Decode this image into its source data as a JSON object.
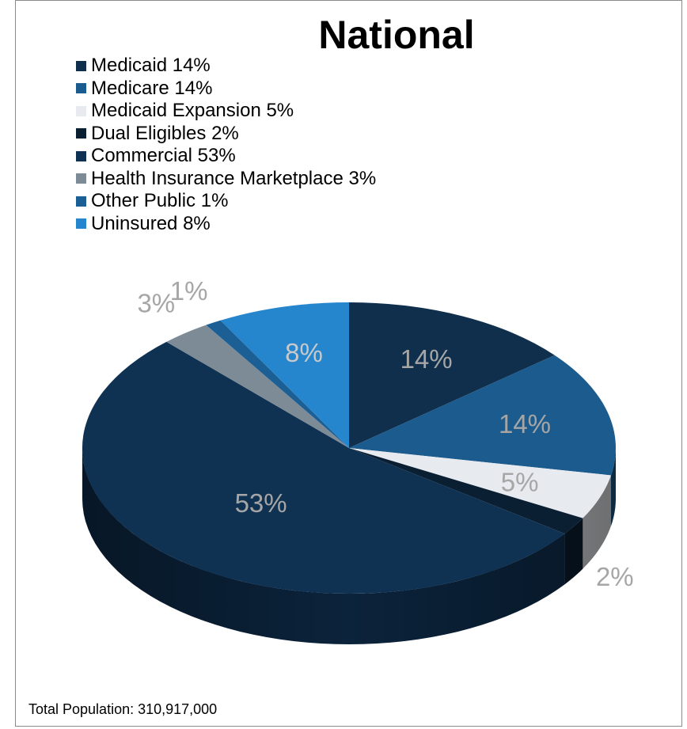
{
  "chart_data": {
    "type": "pie",
    "title": "National",
    "style": "3d",
    "legend_position": "top",
    "categories": [
      "Medicaid",
      "Medicare",
      "Medicaid Expansion",
      "Dual Eligibles",
      "Commercial",
      "Health Insurance Marketplace",
      "Other Public",
      "Uninsured"
    ],
    "values": [
      14,
      14,
      5,
      2,
      53,
      3,
      1,
      8
    ],
    "legend_labels": [
      "Medicaid 14%",
      "Medicare 14%",
      "Medicaid Expansion 5%",
      "Dual Eligibles 2%",
      "Commercial 53%",
      "Health Insurance Marketplace 3%",
      "Other Public 1%",
      "Uninsured 8%"
    ],
    "data_labels": [
      "14%",
      "14%",
      "5%",
      "2%",
      "53%",
      "3%",
      "1%",
      "8%"
    ],
    "colors": [
      "#0f2f4d",
      "#1b5b8d",
      "#e7ebef",
      "#0b1f33",
      "#0f3152",
      "#7d8b97",
      "#1b5f95",
      "#2586ce"
    ],
    "data_label_colors": [
      "#a6a6a6",
      "#a6a6a6",
      "#a6a6a6",
      "#a6a6a6",
      "#a6a6a6",
      "#a6a6a6",
      "#a6a6a6",
      "#c9c9c9"
    ]
  },
  "footer": "Total Population: 310,917,000"
}
